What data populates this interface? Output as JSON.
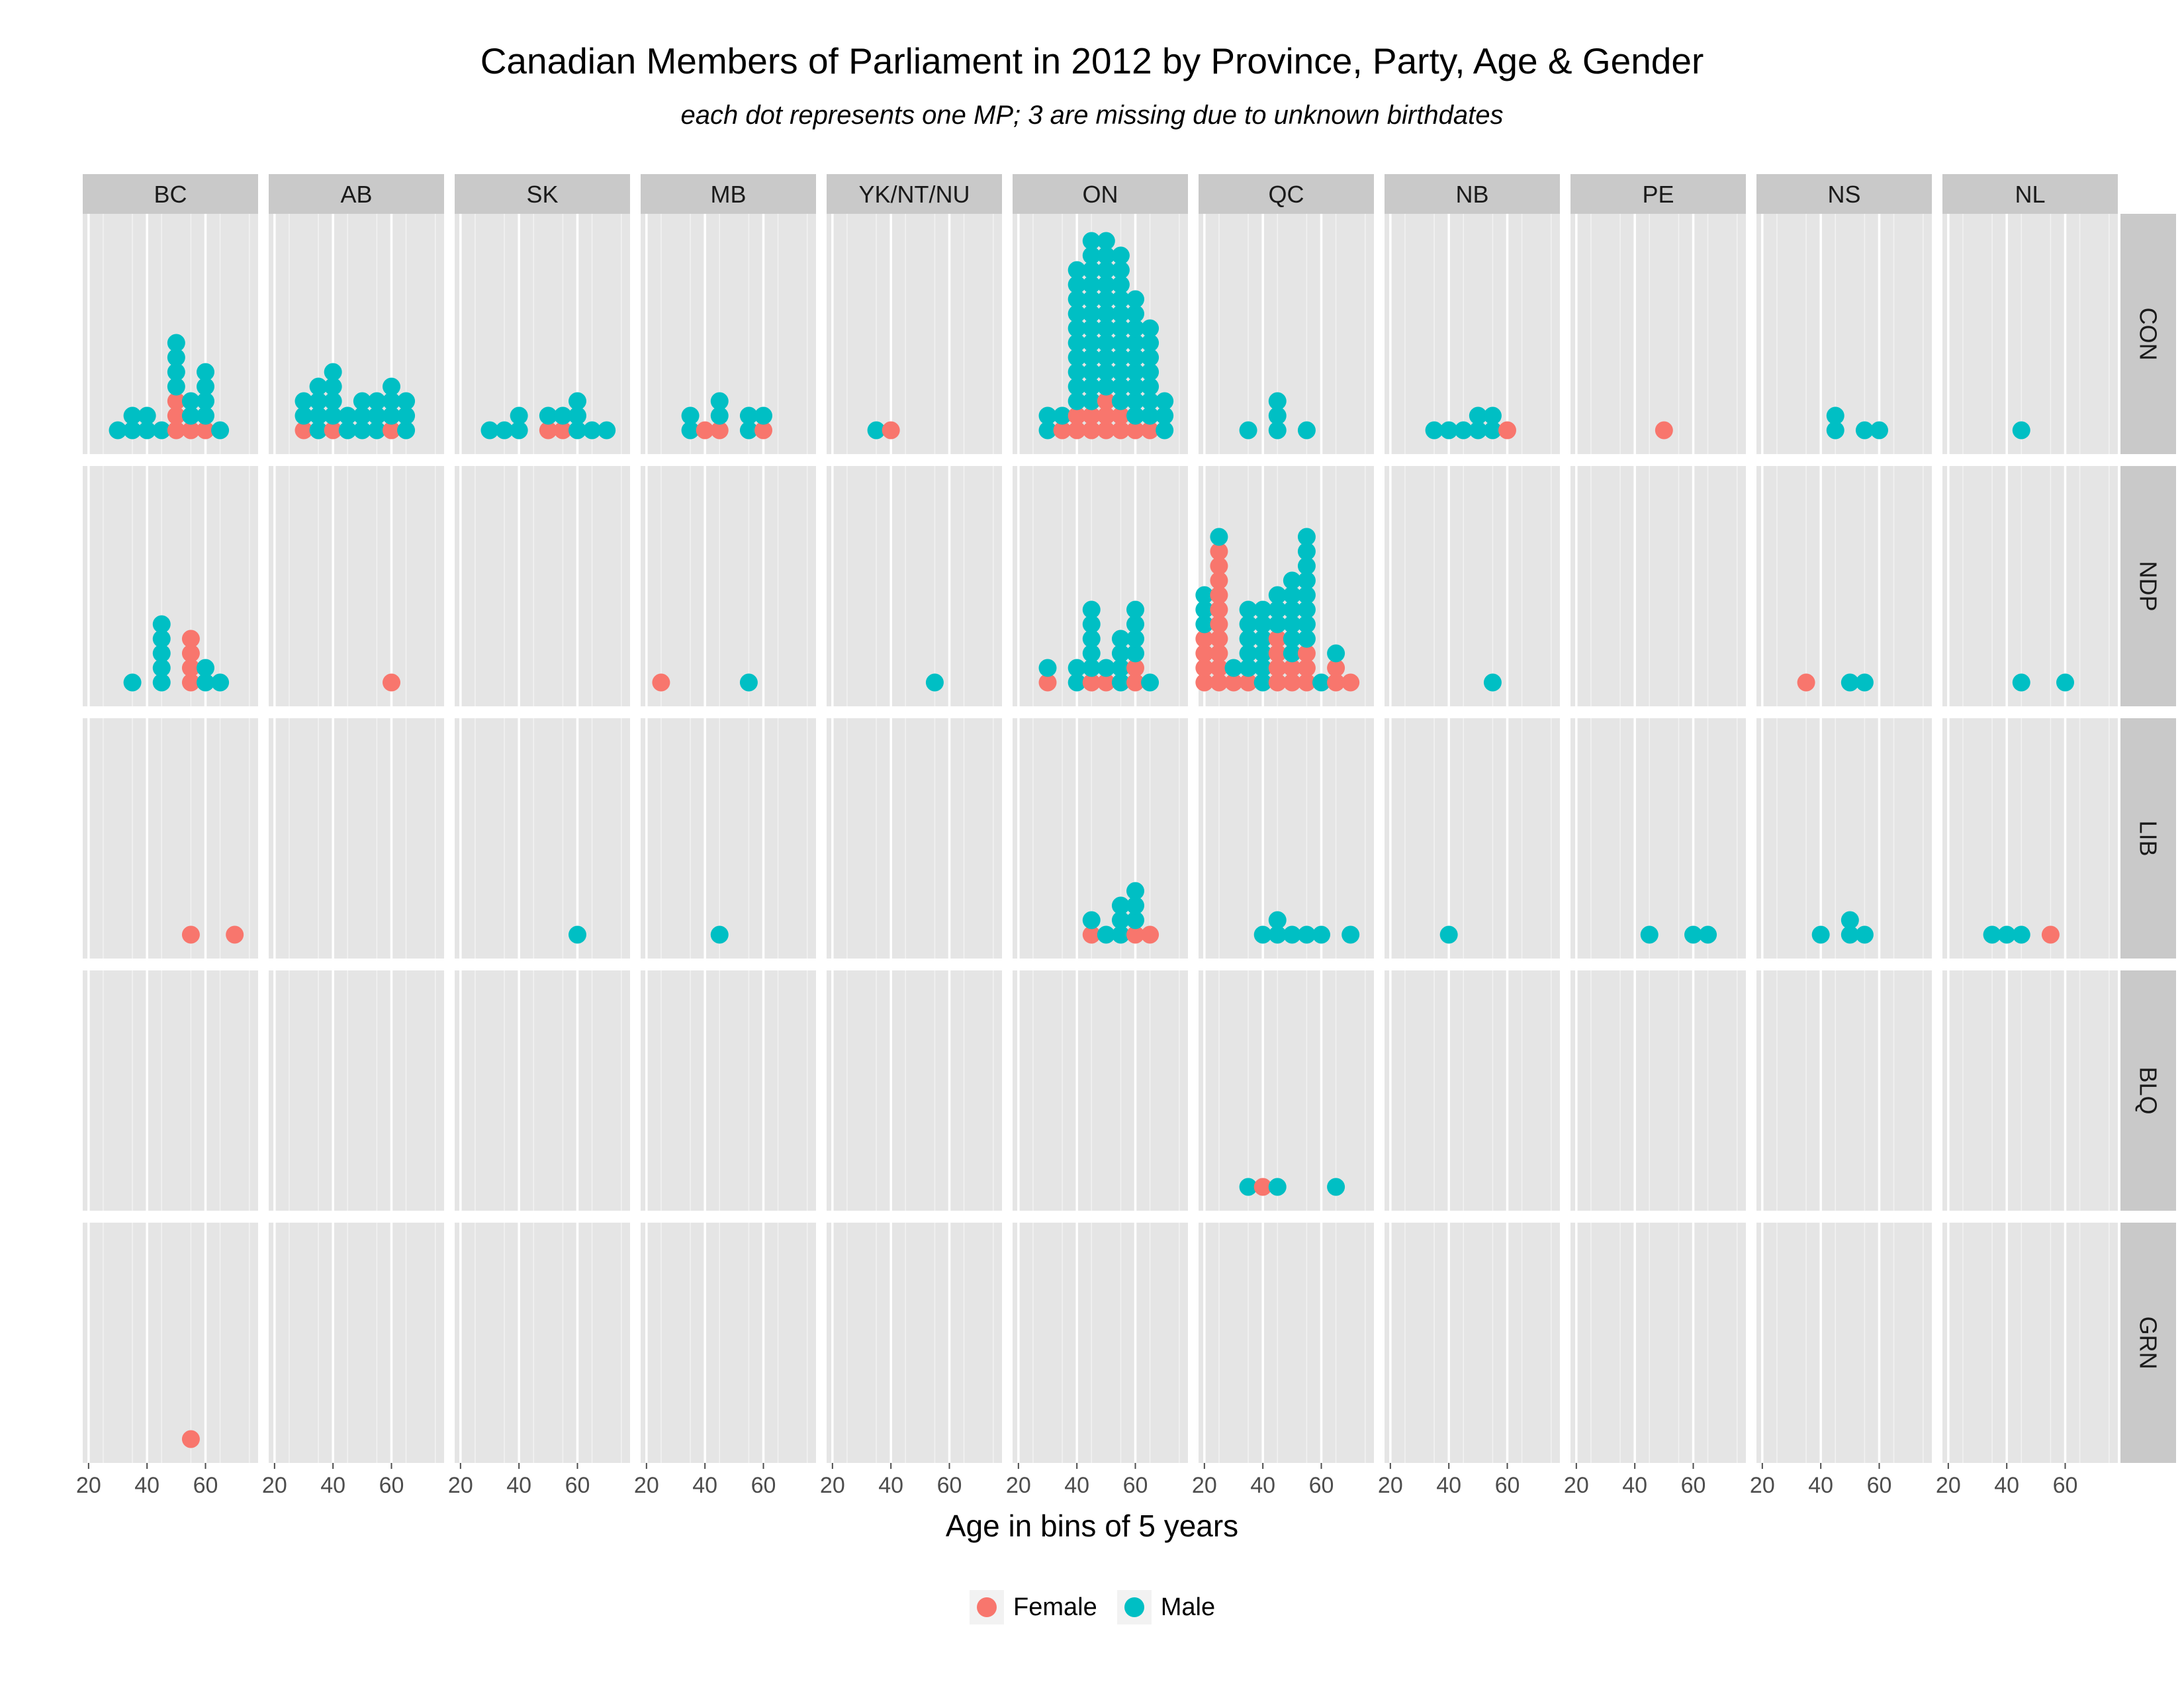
{
  "title": "Canadian Members of Parliament in 2012 by Province, Party, Age & Gender",
  "subtitle": "each dot represents one MP; 3 are missing due to unknown birthdates",
  "colors": {
    "Female": "#F8766D",
    "Male": "#00BFC4",
    "panel_bg": "#e5e5e5",
    "strip_bg": "#c9c9c9",
    "grid": "#f2f2f2"
  },
  "chart_data": {
    "type": "scatter",
    "subtype": "faceted dot plot",
    "xlabel": "Age in bins of 5 years",
    "xlim": [
      18,
      78
    ],
    "x_ticks": [
      20,
      40,
      60
    ],
    "grid": true,
    "legend_position": "bottom",
    "legend": [
      "Female",
      "Male"
    ],
    "columns": [
      "BC",
      "AB",
      "SK",
      "MB",
      "YK/NT/NU",
      "ON",
      "QC",
      "NB",
      "PE",
      "NS",
      "NL"
    ],
    "rows": [
      "CON",
      "NDP",
      "LIB",
      "BLQ",
      "GRN"
    ],
    "panels": [
      {
        "province": "BC",
        "party": "CON",
        "stacks": [
          [
            30,
            "M"
          ],
          [
            35,
            "MM"
          ],
          [
            40,
            "MM"
          ],
          [
            45,
            "M"
          ],
          [
            50,
            "FFFMMMM"
          ],
          [
            55,
            "FMM"
          ],
          [
            60,
            "FMMMM"
          ],
          [
            65,
            "M"
          ]
        ]
      },
      {
        "province": "AB",
        "party": "CON",
        "stacks": [
          [
            30,
            "FMM"
          ],
          [
            35,
            "MMMM"
          ],
          [
            40,
            "FMMMM"
          ],
          [
            45,
            "MM"
          ],
          [
            50,
            "MMM"
          ],
          [
            55,
            "MMM"
          ],
          [
            60,
            "FMMM"
          ],
          [
            65,
            "MMM"
          ]
        ]
      },
      {
        "province": "SK",
        "party": "CON",
        "stacks": [
          [
            30,
            "M"
          ],
          [
            35,
            "M"
          ],
          [
            40,
            "MM"
          ],
          [
            50,
            "FM"
          ],
          [
            55,
            "FM"
          ],
          [
            60,
            "MMM"
          ],
          [
            65,
            "M"
          ],
          [
            70,
            "M"
          ]
        ]
      },
      {
        "province": "MB",
        "party": "CON",
        "stacks": [
          [
            35,
            "MM"
          ],
          [
            40,
            "F"
          ],
          [
            45,
            "FMM"
          ],
          [
            55,
            "MM"
          ],
          [
            60,
            "FM"
          ]
        ]
      },
      {
        "province": "YK/NT/NU",
        "party": "CON",
        "stacks": [
          [
            35,
            "M"
          ],
          [
            40,
            "F"
          ]
        ]
      },
      {
        "province": "ON",
        "party": "CON",
        "stacks": [
          [
            30,
            "MM"
          ],
          [
            35,
            "FM"
          ],
          [
            40,
            "FFMMMMMMMMMM"
          ],
          [
            45,
            "FFMMMMMMMMMMMM"
          ],
          [
            50,
            "FFFMMMMMMMMMMM"
          ],
          [
            55,
            "FFMMMMMMMMMMM"
          ],
          [
            60,
            "FMMMMMMMMM"
          ],
          [
            65,
            "FMMMMMMM"
          ],
          [
            70,
            "MMM"
          ]
        ]
      },
      {
        "province": "QC",
        "party": "CON",
        "stacks": [
          [
            35,
            "M"
          ],
          [
            45,
            "MMM"
          ],
          [
            55,
            "M"
          ]
        ]
      },
      {
        "province": "NB",
        "party": "CON",
        "stacks": [
          [
            35,
            "M"
          ],
          [
            40,
            "M"
          ],
          [
            45,
            "M"
          ],
          [
            50,
            "MM"
          ],
          [
            55,
            "MM"
          ],
          [
            60,
            "F"
          ]
        ]
      },
      {
        "province": "PE",
        "party": "CON",
        "stacks": [
          [
            50,
            "F"
          ]
        ]
      },
      {
        "province": "NS",
        "party": "CON",
        "stacks": [
          [
            45,
            "MM"
          ],
          [
            55,
            "M"
          ],
          [
            60,
            "M"
          ]
        ]
      },
      {
        "province": "NL",
        "party": "CON",
        "stacks": [
          [
            45,
            "M"
          ]
        ]
      },
      {
        "province": "BC",
        "party": "NDP",
        "stacks": [
          [
            35,
            "M"
          ],
          [
            45,
            "MMMMM"
          ],
          [
            55,
            "FFFF"
          ],
          [
            60,
            "MM"
          ],
          [
            65,
            "M"
          ]
        ]
      },
      {
        "province": "AB",
        "party": "NDP",
        "stacks": [
          [
            60,
            "F"
          ]
        ]
      },
      {
        "province": "MB",
        "party": "NDP",
        "stacks": [
          [
            25,
            "F"
          ],
          [
            55,
            "M"
          ]
        ]
      },
      {
        "province": "YK/NT/NU",
        "party": "NDP",
        "stacks": [
          [
            55,
            "M"
          ]
        ]
      },
      {
        "province": "ON",
        "party": "NDP",
        "stacks": [
          [
            30,
            "FM"
          ],
          [
            40,
            "MM"
          ],
          [
            45,
            "FMMMMM"
          ],
          [
            50,
            "FM"
          ],
          [
            55,
            "MMMM"
          ],
          [
            60,
            "FFMMMM"
          ],
          [
            65,
            "M"
          ]
        ]
      },
      {
        "province": "QC",
        "party": "NDP",
        "stacks": [
          [
            20,
            "FFFFMMM"
          ],
          [
            25,
            "FFFFFFFFFFM"
          ],
          [
            30,
            "FM"
          ],
          [
            35,
            "FMMMMM"
          ],
          [
            40,
            "MMMMMM"
          ],
          [
            45,
            "FFFFMMM"
          ],
          [
            50,
            "FFMMMMMM"
          ],
          [
            55,
            "FFFMMMMMMMM"
          ],
          [
            60,
            "M"
          ],
          [
            65,
            "FFM"
          ],
          [
            70,
            "F"
          ]
        ]
      },
      {
        "province": "NB",
        "party": "NDP",
        "stacks": [
          [
            55,
            "M"
          ]
        ]
      },
      {
        "province": "NS",
        "party": "NDP",
        "stacks": [
          [
            35,
            "F"
          ],
          [
            50,
            "M"
          ],
          [
            55,
            "M"
          ]
        ]
      },
      {
        "province": "NL",
        "party": "NDP",
        "stacks": [
          [
            45,
            "M"
          ],
          [
            60,
            "M"
          ]
        ]
      },
      {
        "province": "BC",
        "party": "LIB",
        "stacks": [
          [
            55,
            "F"
          ],
          [
            70,
            "F"
          ]
        ]
      },
      {
        "province": "SK",
        "party": "LIB",
        "stacks": [
          [
            60,
            "M"
          ]
        ]
      },
      {
        "province": "MB",
        "party": "LIB",
        "stacks": [
          [
            45,
            "M"
          ]
        ]
      },
      {
        "province": "ON",
        "party": "LIB",
        "stacks": [
          [
            45,
            "FM"
          ],
          [
            50,
            "M"
          ],
          [
            55,
            "MMM"
          ],
          [
            60,
            "FMMM"
          ],
          [
            65,
            "F"
          ]
        ]
      },
      {
        "province": "QC",
        "party": "LIB",
        "stacks": [
          [
            40,
            "M"
          ],
          [
            45,
            "MM"
          ],
          [
            50,
            "M"
          ],
          [
            55,
            "M"
          ],
          [
            60,
            "M"
          ],
          [
            70,
            "M"
          ]
        ]
      },
      {
        "province": "NB",
        "party": "LIB",
        "stacks": [
          [
            40,
            "M"
          ]
        ]
      },
      {
        "province": "PE",
        "party": "LIB",
        "stacks": [
          [
            45,
            "M"
          ],
          [
            60,
            "M"
          ],
          [
            65,
            "M"
          ]
        ]
      },
      {
        "province": "NS",
        "party": "LIB",
        "stacks": [
          [
            40,
            "M"
          ],
          [
            50,
            "MM"
          ],
          [
            55,
            "M"
          ]
        ]
      },
      {
        "province": "NL",
        "party": "LIB",
        "stacks": [
          [
            35,
            "M"
          ],
          [
            40,
            "M"
          ],
          [
            45,
            "M"
          ],
          [
            55,
            "F"
          ]
        ]
      },
      {
        "province": "QC",
        "party": "BLQ",
        "stacks": [
          [
            35,
            "M"
          ],
          [
            40,
            "F"
          ],
          [
            45,
            "M"
          ],
          [
            65,
            "M"
          ]
        ]
      },
      {
        "province": "BC",
        "party": "GRN",
        "stacks": [
          [
            55,
            "F"
          ]
        ]
      }
    ]
  }
}
